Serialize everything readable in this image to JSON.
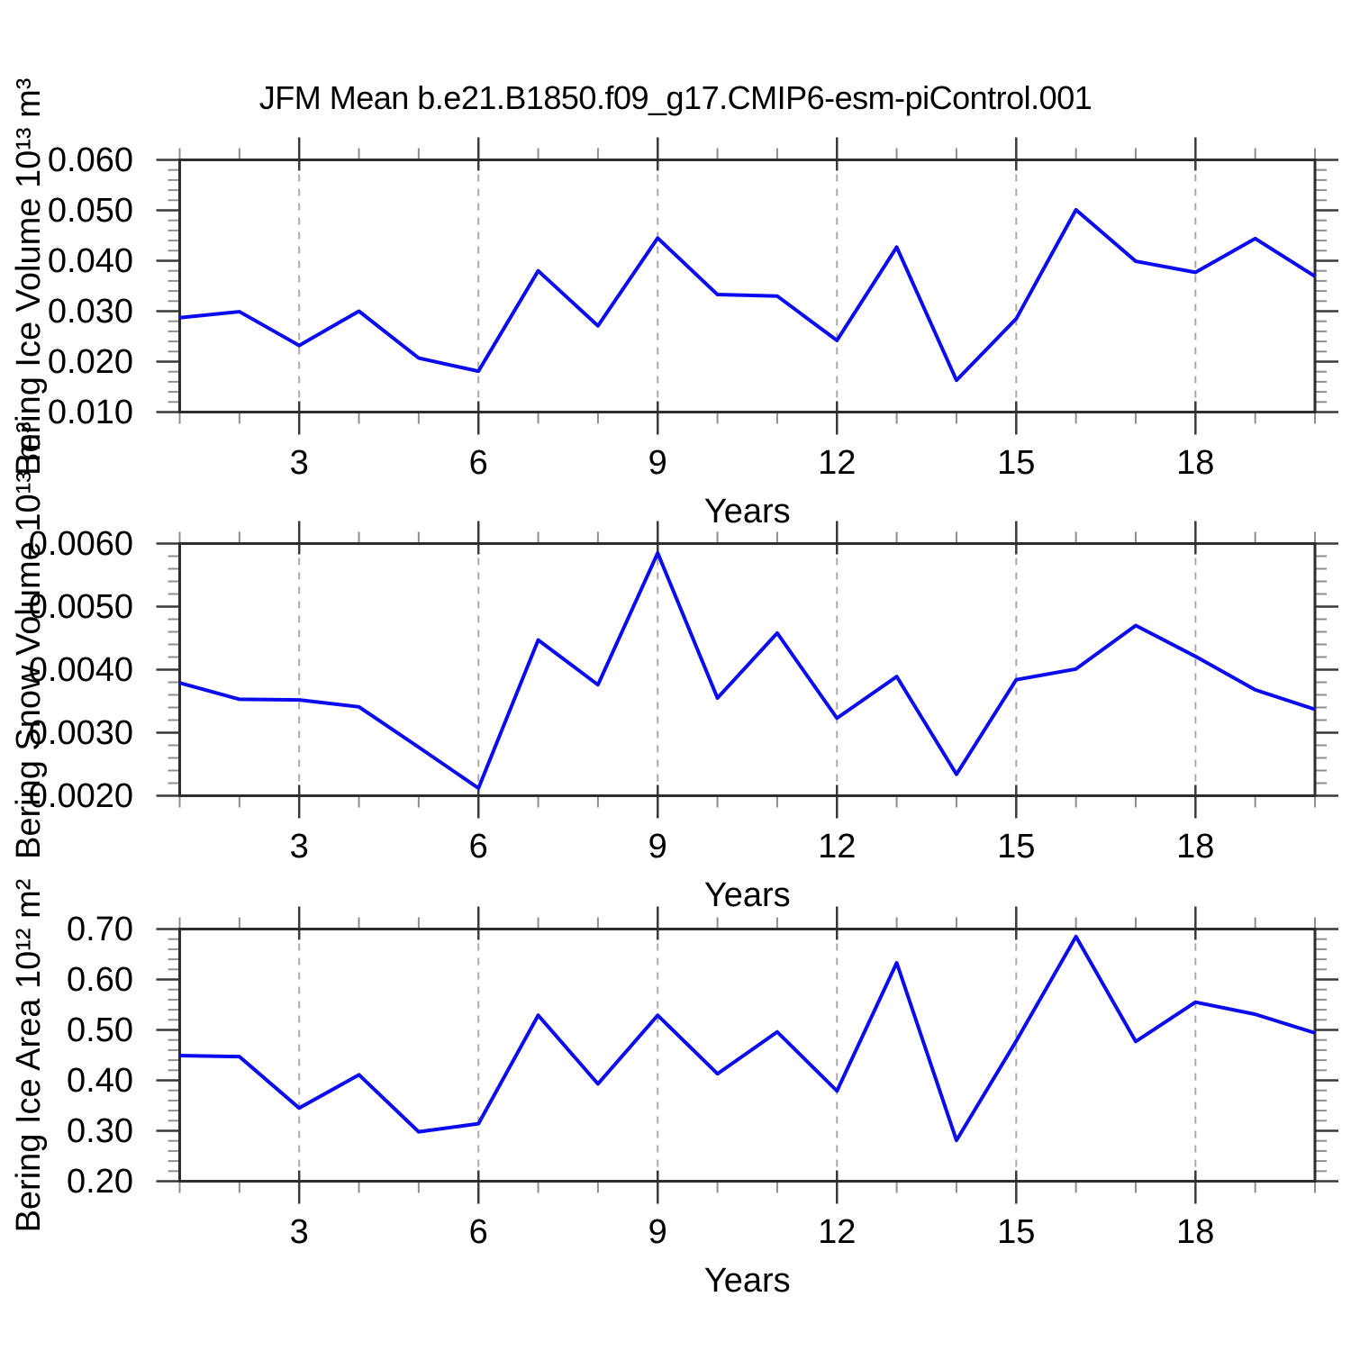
{
  "title": "JFM Mean b.e21.B1850.f09_g17.CMIP6-esm-piControl.001",
  "colors": {
    "line": "#0b0bef",
    "frame": "#2d2d2d",
    "major_tick": "#3a3a3a",
    "minor_tick": "#8f8f8f",
    "gridline": "#ababab",
    "text": "#000000"
  },
  "chart_data": [
    {
      "type": "line",
      "ylabel": "Bering Ice Volume 10¹³ m³",
      "xlabel": "Years",
      "ylim": [
        0.01,
        0.06
      ],
      "xlim": [
        1,
        20
      ],
      "y_major_ticks": [
        0.01,
        0.02,
        0.03,
        0.04,
        0.05,
        0.06
      ],
      "y_tick_labels": [
        "0.010",
        "0.020",
        "0.030",
        "0.040",
        "0.050",
        "0.060"
      ],
      "y_minor_step": 0.002,
      "x_major_ticks": [
        3,
        6,
        9,
        12,
        15,
        18
      ],
      "x_tick_labels": [
        "3",
        "6",
        "9",
        "12",
        "15",
        "18"
      ],
      "x_minor_step": 1,
      "grid_x": [
        3,
        6,
        9,
        12,
        15,
        18
      ],
      "x": [
        1,
        2,
        3,
        4,
        5,
        6,
        7,
        8,
        9,
        10,
        11,
        12,
        13,
        14,
        15,
        16,
        17,
        18,
        19,
        20
      ],
      "values": [
        0.0287,
        0.0299,
        0.0232,
        0.03,
        0.0207,
        0.0181,
        0.038,
        0.0271,
        0.0445,
        0.0333,
        0.033,
        0.0242,
        0.0427,
        0.0163,
        0.0285,
        0.0501,
        0.0399,
        0.0377,
        0.0444,
        0.0369
      ]
    },
    {
      "type": "line",
      "ylabel": "Bering Snow Volume 10¹³ m³",
      "xlabel": "Years",
      "ylim": [
        0.002,
        0.006
      ],
      "xlim": [
        1,
        20
      ],
      "y_major_ticks": [
        0.002,
        0.003,
        0.004,
        0.005,
        0.006
      ],
      "y_tick_labels": [
        "0.0020",
        "0.0030",
        "0.0040",
        "0.0050",
        "0.0060"
      ],
      "y_minor_step": 0.0002,
      "x_major_ticks": [
        3,
        6,
        9,
        12,
        15,
        18
      ],
      "x_tick_labels": [
        "3",
        "6",
        "9",
        "12",
        "15",
        "18"
      ],
      "x_minor_step": 1,
      "grid_x": [
        3,
        6,
        9,
        12,
        15,
        18
      ],
      "x": [
        1,
        2,
        3,
        4,
        5,
        6,
        7,
        8,
        9,
        10,
        11,
        12,
        13,
        14,
        15,
        16,
        17,
        18,
        19,
        20
      ],
      "values": [
        0.00379,
        0.00353,
        0.00352,
        0.00341,
        0.00277,
        0.00212,
        0.00447,
        0.00376,
        0.00585,
        0.00355,
        0.00458,
        0.00323,
        0.00389,
        0.00234,
        0.00384,
        0.00401,
        0.0047,
        0.00421,
        0.00368,
        0.00337
      ]
    },
    {
      "type": "line",
      "ylabel": "Bering Ice Area 10¹² m²",
      "xlabel": "Years",
      "ylim": [
        0.2,
        0.7
      ],
      "xlim": [
        1,
        20
      ],
      "y_major_ticks": [
        0.2,
        0.3,
        0.4,
        0.5,
        0.6,
        0.7
      ],
      "y_tick_labels": [
        "0.20",
        "0.30",
        "0.40",
        "0.50",
        "0.60",
        "0.70"
      ],
      "y_minor_step": 0.02,
      "x_major_ticks": [
        3,
        6,
        9,
        12,
        15,
        18
      ],
      "x_tick_labels": [
        "3",
        "6",
        "9",
        "12",
        "15",
        "18"
      ],
      "x_minor_step": 1,
      "grid_x": [
        3,
        6,
        9,
        12,
        15,
        18
      ],
      "x": [
        1,
        2,
        3,
        4,
        5,
        6,
        7,
        8,
        9,
        10,
        11,
        12,
        13,
        14,
        15,
        16,
        17,
        18,
        19,
        20
      ],
      "values": [
        0.449,
        0.447,
        0.345,
        0.411,
        0.298,
        0.314,
        0.529,
        0.393,
        0.529,
        0.413,
        0.496,
        0.379,
        0.633,
        0.281,
        0.478,
        0.685,
        0.477,
        0.555,
        0.531,
        0.494
      ]
    }
  ]
}
